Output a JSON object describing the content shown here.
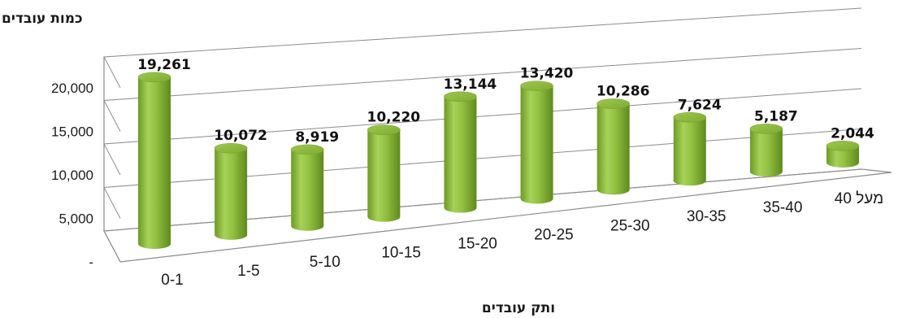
{
  "chart_data": {
    "type": "bar",
    "style": "3d-cylinder",
    "title": "",
    "ylabel": "כמות עובדים",
    "xlabel": "ותק עובדים",
    "categories": [
      "0-1",
      "1-5",
      "5-10",
      "10-15",
      "15-20",
      "20-25",
      "25-30",
      "30-35",
      "35-40",
      "מעל 40"
    ],
    "values": [
      19261,
      10072,
      8919,
      10220,
      13144,
      13420,
      10286,
      7624,
      5187,
      2044
    ],
    "data_labels": [
      "19,261",
      "10,072",
      "8,919",
      "10,220",
      "13,144",
      "13,420",
      "10,286",
      "7,624",
      "5,187",
      "2,044"
    ],
    "yticks": [
      "-",
      "5,000",
      "10,000",
      "15,000",
      "20,000"
    ],
    "ytick_values": [
      0,
      5000,
      10000,
      15000,
      20000
    ],
    "ylim": [
      0,
      20000
    ],
    "grid": true,
    "legend": "none",
    "bar_color": "#8db83a"
  }
}
